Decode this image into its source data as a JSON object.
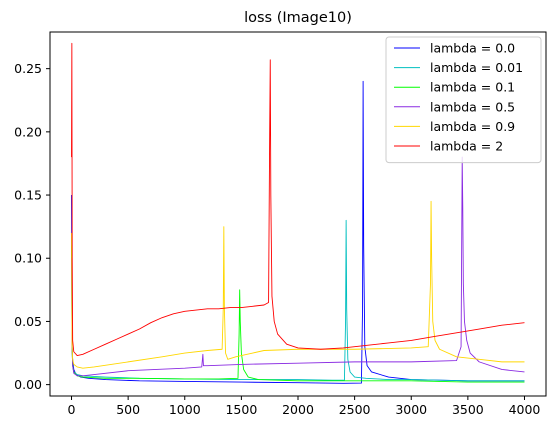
{
  "chart_data": {
    "type": "line",
    "title": "loss (Image10)",
    "xlabel": "",
    "ylabel": "",
    "xlim": [
      -190,
      4190
    ],
    "ylim": [
      -0.009,
      0.279
    ],
    "grid": false,
    "legend_position": "top-right",
    "x_ticks": [
      0,
      500,
      1000,
      1500,
      2000,
      2500,
      3000,
      3500,
      4000
    ],
    "x_tick_labels": [
      "0",
      "500",
      "1000",
      "1500",
      "2000",
      "2500",
      "3000",
      "3500",
      "4000"
    ],
    "y_ticks": [
      0.0,
      0.05,
      0.1,
      0.15,
      0.2,
      0.25
    ],
    "y_tick_labels": [
      "0.00",
      "0.05",
      "0.10",
      "0.15",
      "0.20",
      "0.25"
    ],
    "series": [
      {
        "name": "lambda = 0.0",
        "color": "#0000ff",
        "x": [
          0,
          5,
          10,
          20,
          40,
          80,
          150,
          300,
          600,
          1000,
          1500,
          2000,
          2400,
          2560,
          2570,
          2575,
          2580,
          2590,
          2610,
          2650,
          2800,
          3000,
          3500,
          4000
        ],
        "y": [
          0.15,
          0.03,
          0.02,
          0.012,
          0.008,
          0.006,
          0.005,
          0.004,
          0.003,
          0.0025,
          0.002,
          0.0015,
          0.001,
          0.0012,
          0.06,
          0.24,
          0.11,
          0.03,
          0.015,
          0.01,
          0.006,
          0.004,
          0.003,
          0.003
        ]
      },
      {
        "name": "lambda = 0.01",
        "color": "#00bfbf",
        "x": [
          0,
          5,
          10,
          20,
          50,
          100,
          300,
          600,
          1000,
          1500,
          2000,
          2300,
          2410,
          2420,
          2425,
          2430,
          2440,
          2460,
          2500,
          2600,
          2800,
          3000,
          3500,
          4000
        ],
        "y": [
          0.12,
          0.03,
          0.015,
          0.01,
          0.008,
          0.007,
          0.006,
          0.005,
          0.0045,
          0.004,
          0.004,
          0.0035,
          0.0035,
          0.05,
          0.13,
          0.06,
          0.02,
          0.01,
          0.006,
          0.005,
          0.004,
          0.004,
          0.003,
          0.003
        ]
      },
      {
        "name": "lambda = 0.1",
        "color": "#00ff00",
        "x": [
          0,
          5,
          10,
          20,
          50,
          100,
          300,
          600,
          1000,
          1300,
          1470,
          1480,
          1485,
          1490,
          1500,
          1520,
          1560,
          1650,
          2000,
          2500,
          3000,
          3500,
          4000
        ],
        "y": [
          0.11,
          0.03,
          0.015,
          0.01,
          0.007,
          0.006,
          0.005,
          0.005,
          0.0045,
          0.0045,
          0.005,
          0.04,
          0.075,
          0.05,
          0.025,
          0.012,
          0.006,
          0.004,
          0.003,
          0.003,
          0.003,
          0.002,
          0.002
        ]
      },
      {
        "name": "lambda = 0.5",
        "color": "#8a2be2",
        "x": [
          0,
          5,
          10,
          20,
          50,
          100,
          200,
          500,
          1000,
          1150,
          1160,
          1165,
          1200,
          1500,
          2000,
          2500,
          3000,
          3400,
          3440,
          3450,
          3455,
          3460,
          3470,
          3490,
          3520,
          3600,
          3800,
          4000
        ],
        "y": [
          0.1,
          0.03,
          0.015,
          0.009,
          0.007,
          0.007,
          0.008,
          0.011,
          0.013,
          0.014,
          0.024,
          0.015,
          0.015,
          0.016,
          0.017,
          0.018,
          0.018,
          0.019,
          0.03,
          0.18,
          0.14,
          0.08,
          0.05,
          0.035,
          0.025,
          0.018,
          0.012,
          0.01
        ]
      },
      {
        "name": "lambda = 0.9",
        "color": "#ffd700",
        "x": [
          0,
          5,
          10,
          20,
          50,
          100,
          200,
          500,
          800,
          1000,
          1200,
          1330,
          1340,
          1345,
          1350,
          1360,
          1380,
          1450,
          1600,
          1700,
          2000,
          2500,
          3000,
          3150,
          3170,
          3175,
          3180,
          3190,
          3210,
          3250,
          3400,
          3600,
          3800,
          4000
        ],
        "y": [
          0.12,
          0.03,
          0.02,
          0.016,
          0.014,
          0.013,
          0.014,
          0.018,
          0.022,
          0.025,
          0.027,
          0.028,
          0.06,
          0.125,
          0.06,
          0.025,
          0.02,
          0.022,
          0.025,
          0.027,
          0.028,
          0.028,
          0.029,
          0.03,
          0.08,
          0.145,
          0.1,
          0.05,
          0.035,
          0.028,
          0.022,
          0.02,
          0.018,
          0.018
        ]
      },
      {
        "name": "lambda = 2",
        "color": "#ff0000",
        "x": [
          0,
          3,
          6,
          10,
          20,
          50,
          100,
          200,
          300,
          400,
          500,
          600,
          700,
          800,
          900,
          1000,
          1100,
          1200,
          1300,
          1400,
          1500,
          1600,
          1700,
          1740,
          1750,
          1755,
          1760,
          1770,
          1790,
          1820,
          1900,
          2000,
          2200,
          2400,
          2600,
          2800,
          3000,
          3200,
          3400,
          3600,
          3800,
          4000
        ],
        "y": [
          0.18,
          0.27,
          0.1,
          0.035,
          0.026,
          0.023,
          0.024,
          0.028,
          0.032,
          0.036,
          0.04,
          0.044,
          0.049,
          0.053,
          0.056,
          0.058,
          0.059,
          0.06,
          0.06,
          0.061,
          0.061,
          0.062,
          0.063,
          0.065,
          0.2,
          0.257,
          0.15,
          0.07,
          0.05,
          0.04,
          0.032,
          0.029,
          0.028,
          0.029,
          0.031,
          0.033,
          0.035,
          0.038,
          0.041,
          0.044,
          0.047,
          0.049
        ]
      }
    ]
  }
}
